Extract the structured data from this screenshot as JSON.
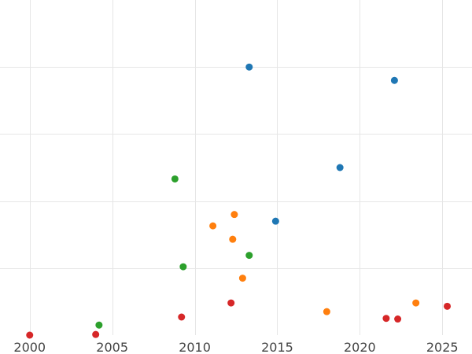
{
  "chart_data": {
    "type": "scatter",
    "title": "",
    "xlabel": "",
    "ylabel": "",
    "xlim": [
      1998.2,
      2026.8
    ],
    "ylim": [
      0,
      5
    ],
    "x_ticks": [
      2000,
      2005,
      2010,
      2015,
      2020,
      2025
    ],
    "x_tick_labels": [
      "2000",
      "2005",
      "2010",
      "2015",
      "2020",
      "2025"
    ],
    "y_gridlines": [
      1,
      2,
      3,
      4
    ],
    "grid": true,
    "legend": "none",
    "series": [
      {
        "color": "#1f77b4",
        "points": [
          {
            "x": 2013.3,
            "y": 4.0
          },
          {
            "x": 2022.1,
            "y": 3.8
          },
          {
            "x": 2018.8,
            "y": 2.5
          },
          {
            "x": 2014.9,
            "y": 1.7
          }
        ]
      },
      {
        "color": "#ff7f0e",
        "points": [
          {
            "x": 2012.4,
            "y": 1.8
          },
          {
            "x": 2011.1,
            "y": 1.63
          },
          {
            "x": 2012.3,
            "y": 1.43
          },
          {
            "x": 2012.9,
            "y": 0.85
          },
          {
            "x": 2018.0,
            "y": 0.35
          },
          {
            "x": 2023.4,
            "y": 0.48
          }
        ]
      },
      {
        "color": "#2ca02c",
        "points": [
          {
            "x": 2008.8,
            "y": 2.33
          },
          {
            "x": 2013.3,
            "y": 1.19
          },
          {
            "x": 2009.3,
            "y": 1.02
          },
          {
            "x": 2004.2,
            "y": 0.15
          }
        ]
      },
      {
        "color": "#d62728",
        "points": [
          {
            "x": 2012.2,
            "y": 0.48
          },
          {
            "x": 2009.2,
            "y": 0.27
          },
          {
            "x": 2021.6,
            "y": 0.25
          },
          {
            "x": 2022.3,
            "y": 0.24
          },
          {
            "x": 2025.3,
            "y": 0.43
          },
          {
            "x": 2000.0,
            "y": 0.0
          },
          {
            "x": 2004.0,
            "y": 0.01
          }
        ]
      }
    ]
  }
}
